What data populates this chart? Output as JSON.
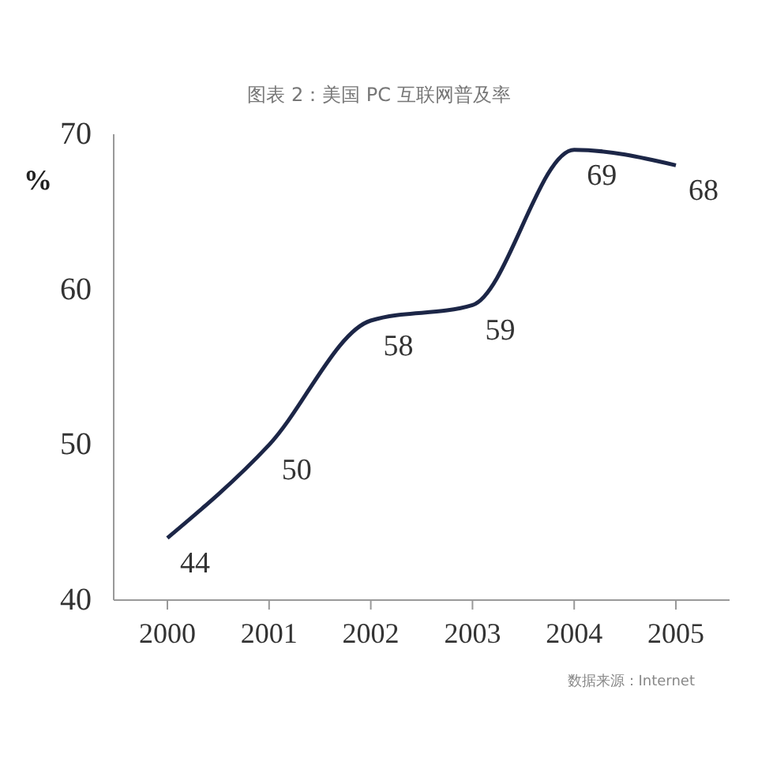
{
  "chart_data": {
    "type": "line",
    "title": "图表 2：美国 PC 互联网普及率",
    "ylabel": "%",
    "categories": [
      "2000",
      "2001",
      "2002",
      "2003",
      "2004",
      "2005"
    ],
    "series": [
      {
        "color": "#1c2647",
        "values": [
          44,
          50,
          58,
          59,
          69,
          68
        ]
      }
    ],
    "ylim": [
      40,
      70
    ],
    "yticks": [
      40,
      50,
      60,
      70
    ],
    "marker": "none",
    "line_style": "solid",
    "data_labels": true,
    "annotations": [
      "数据来源：Internet"
    ]
  }
}
